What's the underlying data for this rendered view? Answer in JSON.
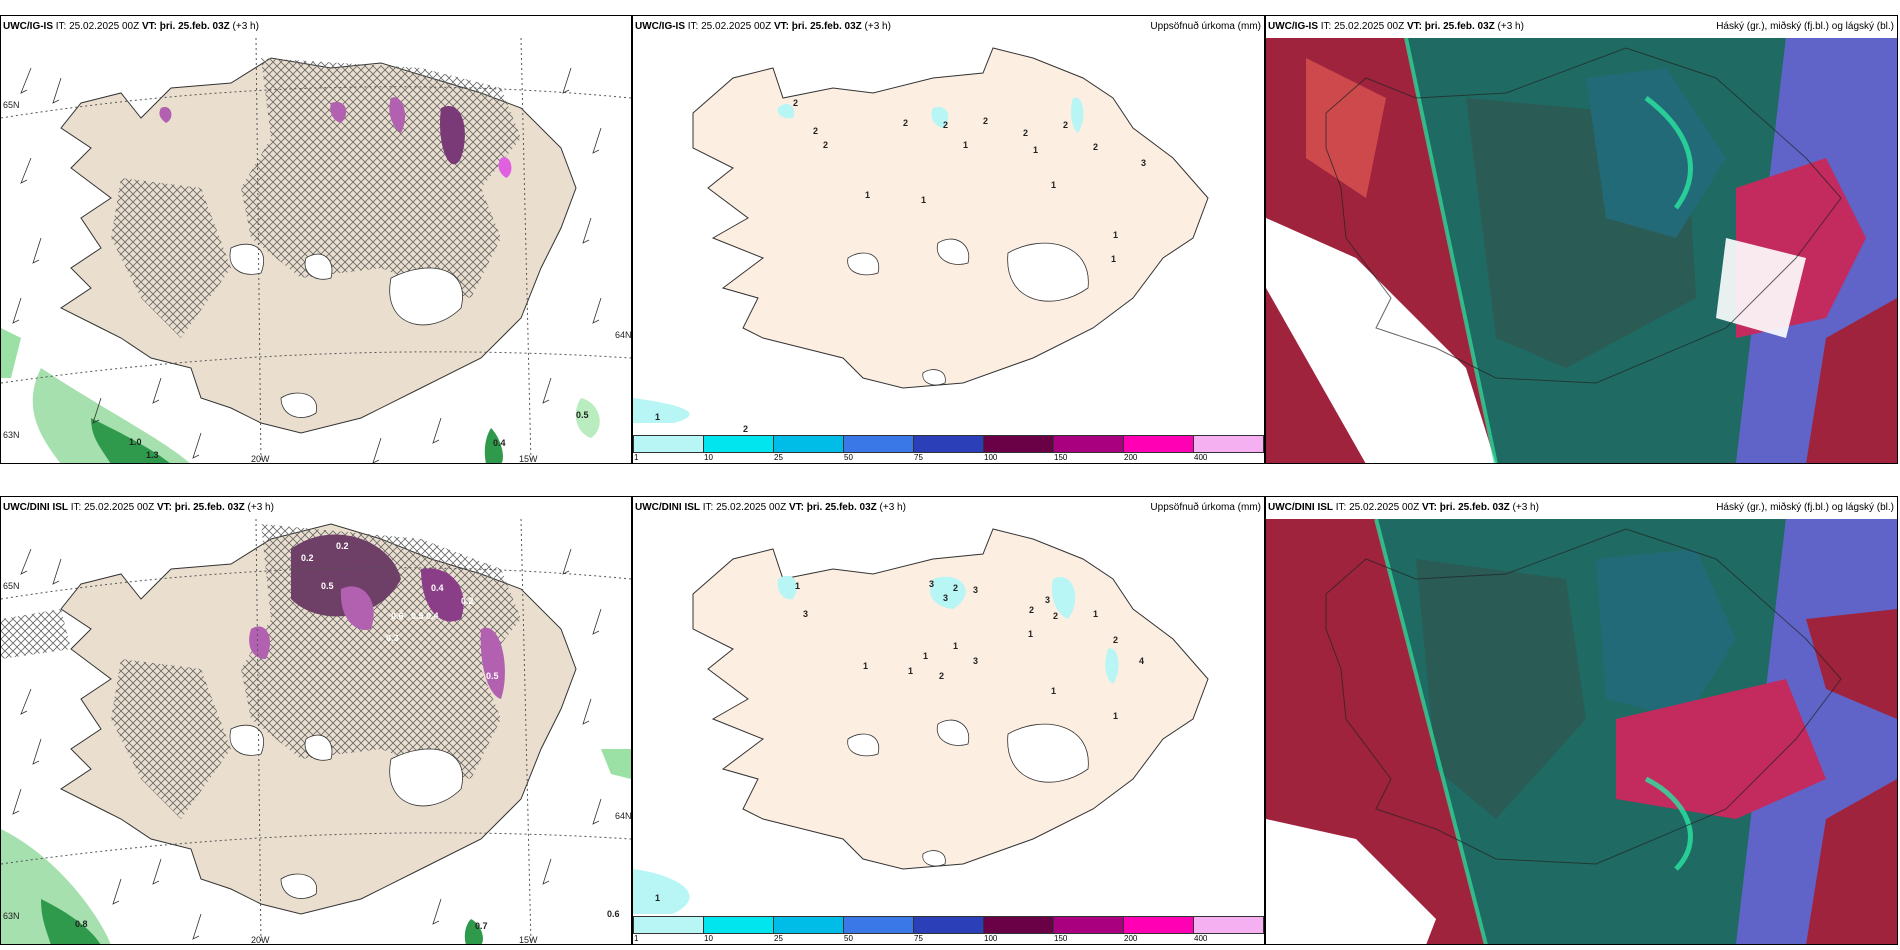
{
  "rows": [
    {
      "model_bold": "UWC/IG-IS",
      "it_label": " IT: 25.02.2025 00Z ",
      "vt_bold": "VT: þri. 25.feb. 03Z",
      "lead": " (+3 h)",
      "left_values": [
        "1.0",
        "1.3",
        "0.5",
        "0.4"
      ],
      "left_grid_labels": [
        "65N",
        "20W",
        "15W",
        "64N",
        "63N"
      ],
      "middle_title": "Uppsöfnuð úrkoma (mm)",
      "middle_points": [
        "2",
        "2",
        "2",
        "2",
        "2",
        "2",
        "2",
        "2",
        "1",
        "1",
        "1",
        "1",
        "3",
        "2",
        "1",
        "1",
        "1",
        "1",
        "2"
      ],
      "right_title": "Háský (gr.), miðský (fj.bl.) og lágský (bl.)"
    },
    {
      "model_bold": "UWC/DINI ISL",
      "it_label": " IT: 25.02.2025 00Z ",
      "vt_bold": "VT: þri. 25.feb. 03Z",
      "lead": " (+3 h)",
      "left_values": [
        "0.2",
        "0.2",
        "0.5",
        "0.4",
        "0.6",
        "0.5",
        "0.4",
        "0.2",
        "0.3",
        "0.5",
        "0.8",
        "0.7",
        "0.6"
      ],
      "left_grid_labels": [
        "65N",
        "20W",
        "15W",
        "64N",
        "63N"
      ],
      "middle_title": "Uppsöfnuð úrkoma (mm)",
      "middle_points": [
        "1",
        "3",
        "3",
        "3",
        "2",
        "3",
        "2",
        "3",
        "1",
        "2",
        "1",
        "2",
        "1",
        "1",
        "3",
        "1",
        "1",
        "2",
        "4",
        "1",
        "1",
        "1"
      ],
      "right_title": "Háský (gr.), miðský (fj.bl.) og lágský (bl.)"
    }
  ],
  "colorbar": {
    "labels": [
      "1",
      "10",
      "25",
      "50",
      "75",
      "100",
      "150",
      "200",
      "400"
    ],
    "colors": [
      "#b8f5f5",
      "#00e5ee",
      "#00bde8",
      "#3a78e8",
      "#2a3fb8",
      "#6a0046",
      "#a8007e",
      "#ff00b4",
      "#f4b0f0"
    ]
  }
}
